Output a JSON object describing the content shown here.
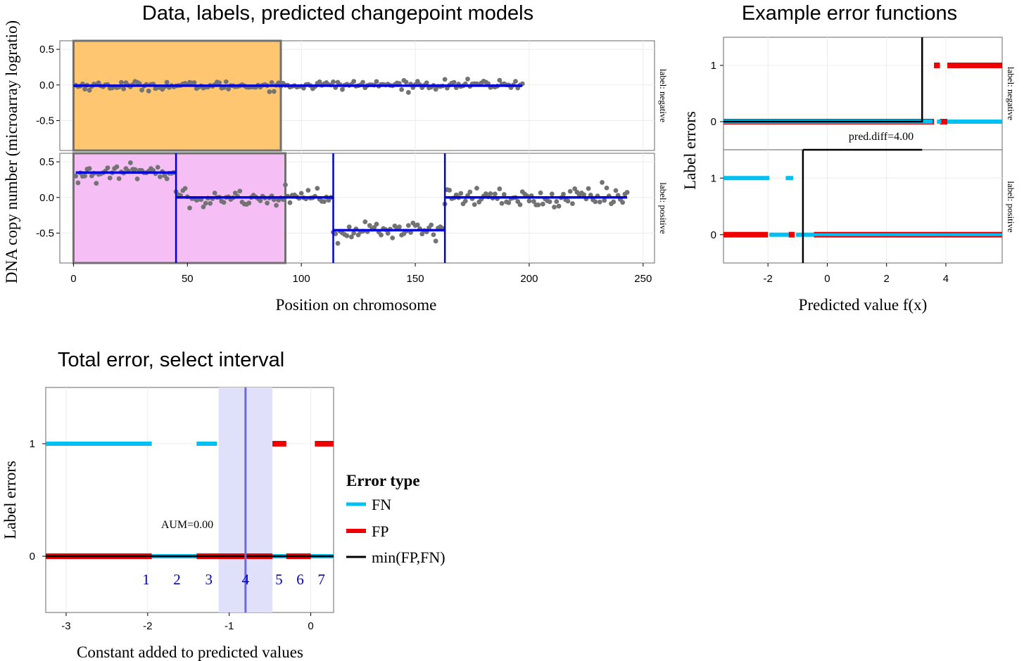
{
  "chart_data": [
    {
      "type": "scatter",
      "title": "Data, labels, predicted changepoint models",
      "xlabel": "Position on chromosome",
      "ylabel": "DNA copy number (microarray logratio)",
      "xlim": [
        -6,
        255
      ],
      "x_ticks": [
        0,
        50,
        100,
        150,
        200,
        250
      ],
      "x_tick_labels": [
        "0",
        "50",
        "100",
        "150",
        "200",
        "250"
      ],
      "ylim": [
        -0.92,
        0.62
      ],
      "y_ticks": [
        -0.5,
        0.0,
        0.5
      ],
      "y_tick_labels": [
        "-0.5",
        "0.0",
        "0.5"
      ],
      "grid": true,
      "colors": {
        "points": "#737373",
        "segments": "#0000dd",
        "negative_region": "#ffc671",
        "positive_region": "#f5bff5"
      },
      "panels": [
        {
          "strip_label": "label: negative",
          "n_points": 197,
          "point_noise_sd": 0.03,
          "label_region": [
            0,
            91
          ],
          "segments": [
            {
              "x_start": 0,
              "x_end": 197,
              "mean": -0.01
            }
          ],
          "changepoints": []
        },
        {
          "strip_label": "label: positive",
          "n_points": 243,
          "point_noise_sd": 0.065,
          "label_region": [
            0,
            93
          ],
          "segments": [
            {
              "x_start": 1,
              "x_end": 45,
              "mean": 0.35
            },
            {
              "x_start": 45,
              "x_end": 114,
              "mean": 0.0
            },
            {
              "x_start": 114,
              "x_end": 163,
              "mean": -0.46
            },
            {
              "x_start": 163,
              "x_end": 243,
              "mean": 0.0
            }
          ],
          "changepoints": [
            45,
            114,
            163
          ]
        }
      ]
    },
    {
      "type": "line",
      "title": "Example error functions",
      "xlabel": "Predicted value f(x)",
      "ylabel": "Label errors",
      "xlim": [
        -3.5,
        5.9
      ],
      "x_ticks": [
        -2,
        0,
        2,
        4
      ],
      "x_tick_labels": [
        "-2",
        "0",
        "2",
        "4"
      ],
      "ylim": [
        -0.5,
        1.5
      ],
      "y_ticks": [
        0,
        1
      ],
      "y_tick_labels": [
        "0",
        "1"
      ],
      "grid": true,
      "annotation": "pred.diff=4.00",
      "panels": [
        {
          "strip_label": "label: negative",
          "step_x": 3.2,
          "FP": [
            [
              -3.5,
              3.6,
              0
            ],
            [
              3.6,
              3.8,
              1
            ],
            [
              3.8,
              4.05,
              0
            ],
            [
              4.05,
              5.9,
              1
            ]
          ],
          "FN": [
            [
              -3.5,
              3.55,
              0
            ],
            [
              3.7,
              3.85,
              0
            ],
            [
              4.05,
              5.9,
              0
            ]
          ]
        },
        {
          "strip_label": "label: positive",
          "step_x": -0.82,
          "FP": [
            [
              -3.5,
              -2.0,
              0
            ],
            [
              -1.3,
              -1.1,
              0
            ],
            [
              -0.45,
              5.9,
              0
            ]
          ],
          "FN": [
            [
              -3.5,
              -1.95,
              1
            ],
            [
              -1.4,
              -1.15,
              1
            ],
            [
              -1.95,
              -1.3,
              0
            ],
            [
              -1.05,
              5.9,
              0
            ]
          ]
        }
      ]
    },
    {
      "type": "line",
      "title": "Total error, select interval",
      "xlabel": "Constant added to predicted values",
      "ylabel": "Label errors",
      "xlim": [
        -3.25,
        0.28
      ],
      "x_ticks": [
        -3,
        -2,
        -1,
        0
      ],
      "x_tick_labels": [
        "-3",
        "-2",
        "-1",
        "0"
      ],
      "ylim": [
        -0.5,
        1.5
      ],
      "y_ticks": [
        0,
        1
      ],
      "y_tick_labels": [
        "0",
        "1"
      ],
      "grid": true,
      "annotation": "AUM=0.00",
      "selected_interval": [
        -1.13,
        -0.47
      ],
      "selected_x": -0.8,
      "FN": [
        [
          -3.25,
          -1.95,
          1
        ],
        [
          -1.4,
          -1.15,
          1
        ],
        [
          -3.25,
          0.28,
          0
        ]
      ],
      "FP": [
        [
          -3.25,
          -1.95,
          0
        ],
        [
          -1.4,
          -0.47,
          0
        ],
        [
          -0.47,
          -0.3,
          1
        ],
        [
          -0.3,
          0.0,
          0
        ],
        [
          0.05,
          0.28,
          1
        ]
      ],
      "min_FP_FN": [
        [
          -3.25,
          0.28,
          0
        ]
      ],
      "interval_labels": [
        {
          "x": -2.02,
          "label": "1"
        },
        {
          "x": -1.64,
          "label": "2"
        },
        {
          "x": -1.25,
          "label": "3"
        },
        {
          "x": -0.8,
          "label": "4"
        },
        {
          "x": -0.39,
          "label": "5"
        },
        {
          "x": -0.13,
          "label": "6"
        },
        {
          "x": 0.13,
          "label": "7"
        }
      ],
      "legend": {
        "title": "Error type",
        "position": "right",
        "entries": [
          {
            "name": "FN",
            "color": "#00bff3"
          },
          {
            "name": "FP",
            "color": "#ee0000"
          },
          {
            "name": "min(FP,FN)",
            "color": "#000000"
          }
        ]
      }
    }
  ]
}
